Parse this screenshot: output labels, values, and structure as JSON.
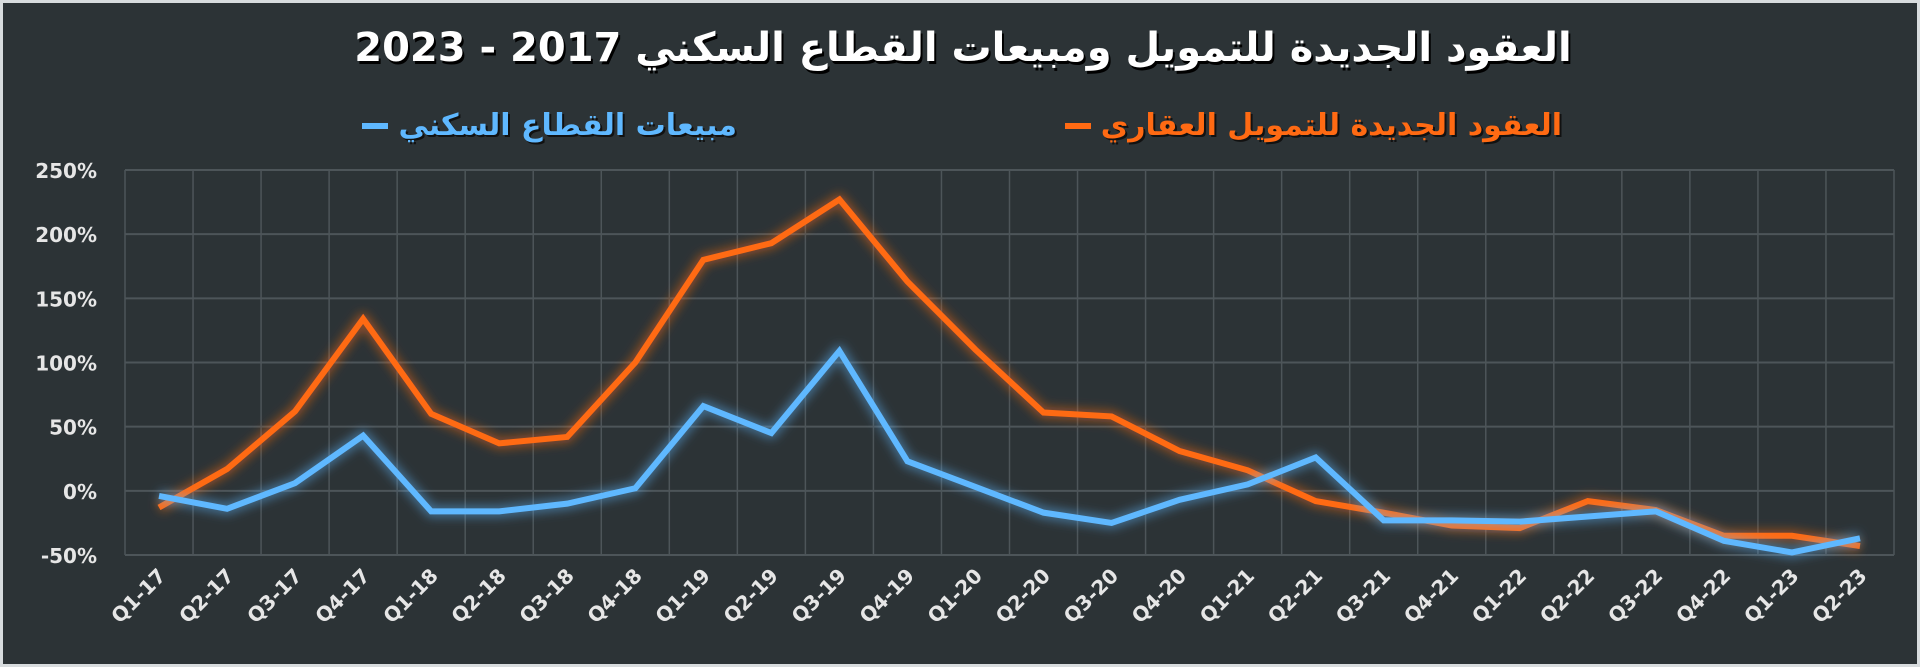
{
  "chart_data": {
    "type": "line",
    "title": "العقود الجديدة للتمويل ومبيعات القطاع السكني 2017 - 2023",
    "xlabel": "",
    "ylabel": "",
    "ylim": [
      -50,
      250
    ],
    "y_ticks": [
      "250%",
      "200%",
      "150%",
      "100%",
      "50%",
      "0%",
      "-50%"
    ],
    "y_tick_values": [
      250,
      200,
      150,
      100,
      50,
      0,
      -50
    ],
    "grid": true,
    "legend_position": "top",
    "categories": [
      "Q1-17",
      "Q2-17",
      "Q3-17",
      "Q4-17",
      "Q1-18",
      "Q2-18",
      "Q3-18",
      "Q4-18",
      "Q1-19",
      "Q2-19",
      "Q3-19",
      "Q4-19",
      "Q1-20",
      "Q2-20",
      "Q3-20",
      "Q4-20",
      "Q1-21",
      "Q2-21",
      "Q3-21",
      "Q4-21",
      "Q1-22",
      "Q2-22",
      "Q3-22",
      "Q4-22",
      "Q1-23",
      "Q2-23"
    ],
    "series": [
      {
        "name": "العقود الجديدة للتمويل العقاري",
        "color": "#ff6a13",
        "values": [
          -13,
          17,
          62,
          134,
          60,
          37,
          42,
          100,
          180,
          193,
          227,
          163,
          110,
          61,
          58,
          31,
          16,
          -8,
          -17,
          -27,
          -29,
          -8,
          -15,
          -35,
          -35,
          -43
        ]
      },
      {
        "name": "مبيعات القطاع السكني",
        "color": "#5fb8ff",
        "values": [
          -4,
          -14,
          6,
          43,
          -16,
          -16,
          -10,
          2,
          66,
          45,
          109,
          23,
          3,
          -17,
          -25,
          -7,
          5,
          26,
          -23,
          -23,
          -24,
          -20,
          -16,
          -39,
          -48,
          -37
        ]
      }
    ]
  }
}
